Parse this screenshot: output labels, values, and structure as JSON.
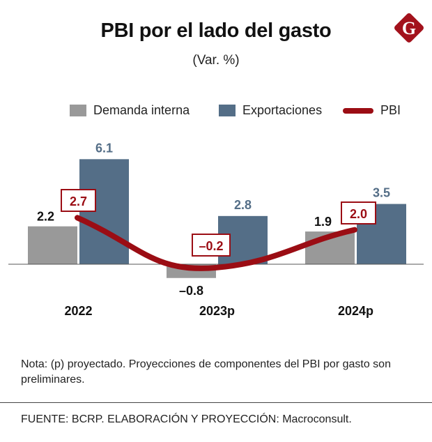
{
  "header": {
    "title": "PBI por el lado del gasto",
    "subtitle": "(Var. %)",
    "logo_letter": "G"
  },
  "chart_data": {
    "type": "bar",
    "categories": [
      "2022",
      "2023p",
      "2024p"
    ],
    "series": [
      {
        "name": "Demanda interna",
        "type": "bar",
        "values": [
          2.2,
          -0.8,
          1.9
        ],
        "color": "#999999"
      },
      {
        "name": "Exportaciones",
        "type": "bar",
        "values": [
          6.1,
          2.8,
          3.5
        ],
        "color": "#546e87"
      },
      {
        "name": "PBI",
        "type": "line",
        "values": [
          2.7,
          -0.2,
          2.0
        ],
        "color": "#9b0d14"
      }
    ],
    "value_labels": {
      "Demanda interna": [
        "2.2",
        "-0.8",
        "1.9"
      ],
      "Exportaciones": [
        "6.1",
        "2.8",
        "3.5"
      ],
      "PBI": [
        "2.7",
        "-0.2",
        "2.0"
      ]
    },
    "grid": false,
    "legend": "top"
  },
  "note": "Nota: (p) proyectado. Proyecciones de componentes del PBI por gasto son preliminares.",
  "source": "FUENTE: BCRP. ELABORACIÓN Y PROYECCIÓN: Macroconsult."
}
